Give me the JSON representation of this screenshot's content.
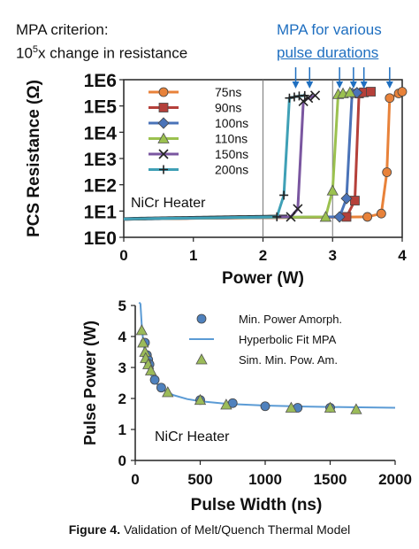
{
  "header": {
    "criterion_line1": "MPA criterion:",
    "criterion_line2_base": "10",
    "criterion_line2_sup": "5",
    "criterion_line2_rest": "x change in resistance",
    "mpa_line1": "MPA for various",
    "mpa_line2": "pulse durations"
  },
  "caption": {
    "label": "Figure 4.",
    "text": " Validation of Melt/Quench Thermal Model"
  },
  "colors": {
    "75ns": "#e8823a",
    "90ns": "#b5403a",
    "100ns": "#4a73b8",
    "110ns": "#9bc14f",
    "150ns": "#7a56a0",
    "200ns": "#3fa0b6",
    "baseline": "#222222",
    "fit": "#5b9bd5",
    "marker_blue": "#4f81bd",
    "marker_green": "#9bbb59",
    "arrow": "#1f6fc0"
  },
  "chart_data": [
    {
      "type": "line",
      "xlabel": "Power (W)",
      "ylabel": "PCS Resistance (Ω)",
      "xlim": [
        0,
        4
      ],
      "ylim_log10": [
        0,
        6
      ],
      "yscale": "log",
      "x_ticks": [
        "0",
        "1",
        "2",
        "3",
        "4"
      ],
      "y_ticks": [
        "1E0",
        "1E1",
        "1E2",
        "1E3",
        "1E4",
        "1E5",
        "1E6"
      ],
      "annotation": "NiCr Heater",
      "legend_position": "top-left",
      "grid": "vertical lines at x=2, 3",
      "series": [
        {
          "name": "75ns",
          "marker": "circle",
          "points": [
            [
              0,
              5
            ],
            [
              3.5,
              6
            ],
            [
              3.7,
              8
            ],
            [
              3.78,
              300
            ],
            [
              3.82,
              200000
            ],
            [
              3.95,
              300000
            ],
            [
              4.0,
              350000
            ]
          ]
        },
        {
          "name": "90ns",
          "marker": "square",
          "points": [
            [
              0,
              5
            ],
            [
              3.2,
              6
            ],
            [
              3.32,
              25
            ],
            [
              3.38,
              300000
            ],
            [
              3.45,
              330000
            ],
            [
              3.55,
              350000
            ]
          ]
        },
        {
          "name": "100ns",
          "marker": "diamond",
          "points": [
            [
              0,
              5
            ],
            [
              3.1,
              6
            ],
            [
              3.2,
              30
            ],
            [
              3.28,
              300000
            ],
            [
              3.35,
              320000
            ]
          ]
        },
        {
          "name": "110ns",
          "marker": "triangle",
          "points": [
            [
              0,
              5
            ],
            [
              2.9,
              6
            ],
            [
              3.0,
              60
            ],
            [
              3.08,
              280000
            ],
            [
              3.15,
              300000
            ],
            [
              3.25,
              330000
            ]
          ]
        },
        {
          "name": "150ns",
          "marker": "x",
          "points": [
            [
              0,
              5
            ],
            [
              2.4,
              6
            ],
            [
              2.5,
              12
            ],
            [
              2.58,
              150000
            ],
            [
              2.65,
              200000
            ],
            [
              2.75,
              250000
            ]
          ]
        },
        {
          "name": "200ns",
          "marker": "plus",
          "points": [
            [
              0,
              5
            ],
            [
              2.2,
              6
            ],
            [
              2.3,
              40
            ],
            [
              2.38,
              200000
            ],
            [
              2.45,
              220000
            ],
            [
              2.52,
              240000
            ],
            [
              2.6,
              250000
            ]
          ]
        }
      ],
      "mpa_arrow_x": [
        2.47,
        2.67,
        3.1,
        3.3,
        3.45,
        3.82
      ]
    },
    {
      "type": "scatter",
      "xlabel": "Pulse Width (ns)",
      "ylabel": "Pulse Power (W)",
      "xlim": [
        0,
        2000
      ],
      "ylim": [
        0,
        5
      ],
      "x_ticks": [
        "0",
        "500",
        "1000",
        "1500",
        "2000"
      ],
      "y_ticks": [
        "0",
        "1",
        "2",
        "3",
        "4",
        "5"
      ],
      "annotation": "NiCr Heater",
      "legend_position": "top-right",
      "series": [
        {
          "name": "Min. Power Amorph.",
          "marker": "circle",
          "x": [
            75,
            90,
            100,
            110,
            150,
            200,
            500,
            750,
            1000,
            1250,
            1500
          ],
          "y": [
            3.8,
            3.4,
            3.25,
            3.1,
            2.6,
            2.35,
            1.95,
            1.85,
            1.75,
            1.7,
            1.7
          ]
        },
        {
          "name": "Hyperbolic Fit MPA",
          "type": "line",
          "x": [
            30,
            40,
            50,
            60,
            75,
            90,
            100,
            125,
            150,
            200,
            250,
            300,
            400,
            500,
            700,
            1000,
            1300,
            1600,
            2000
          ],
          "y": [
            6.2,
            5.05,
            4.37,
            3.91,
            3.45,
            3.15,
            3.0,
            2.73,
            2.55,
            2.32,
            2.19,
            2.1,
            1.98,
            1.91,
            1.83,
            1.77,
            1.74,
            1.72,
            1.7
          ]
        },
        {
          "name": "Sim. Min. Pow. Am.",
          "marker": "triangle",
          "x": [
            50,
            60,
            75,
            80,
            100,
            120,
            250,
            500,
            700,
            1200,
            1500,
            1700
          ],
          "y": [
            4.2,
            3.8,
            3.5,
            3.3,
            3.1,
            2.9,
            2.2,
            1.95,
            1.8,
            1.7,
            1.7,
            1.65
          ]
        }
      ]
    }
  ]
}
